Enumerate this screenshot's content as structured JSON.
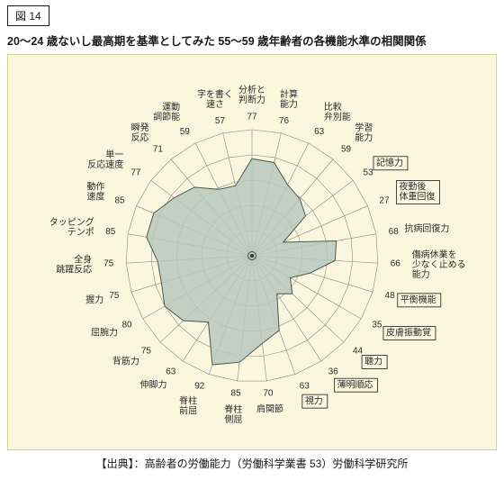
{
  "figure_tag": "図  14",
  "title": "20～24 歳ないし最高期を基準としてみた 55～59 歳年齢者の各機能水準の相関関係",
  "credit": "【出典】：高齢者の労働能力（労働科学業書 53）労働科学研究所",
  "chart": {
    "type": "radar",
    "background_color": "#fbf7de",
    "border_color": "#aab241",
    "border_width": 1,
    "grid_stroke": "#888888",
    "grid_stroke_width": 0.6,
    "axis_stroke": "#888888",
    "axis_stroke_width": 0.6,
    "data_fill": "#b9c8bd",
    "data_fill_opacity": 0.85,
    "data_stroke": "#4a5a4f",
    "data_stroke_width": 1,
    "label_color": "#2c2c2c",
    "value_color": "#2c2c2c",
    "highlight_stroke": "#1a1a1a",
    "rings": [
      20,
      40,
      60,
      80,
      100
    ],
    "max_value": 100,
    "center_marker": true,
    "axes": [
      {
        "label": "分析と\n判断力",
        "value": 77,
        "highlight": false
      },
      {
        "label": "計算\n能力",
        "value": 76,
        "highlight": false
      },
      {
        "label": "比較\n弁別能",
        "value": 63,
        "highlight": false
      },
      {
        "label": "学習\n能力",
        "value": 59,
        "highlight": false
      },
      {
        "label": "記憶力",
        "value": 53,
        "highlight": true
      },
      {
        "label": "夜勤後\n体重回復",
        "value": 27,
        "highlight": true
      },
      {
        "label": "抗病回復力",
        "value": 68,
        "highlight": false
      },
      {
        "label": "傷病休業を\n少なく止める\n能力",
        "value": 66,
        "highlight": false
      },
      {
        "label": "平衡機能",
        "value": 48,
        "highlight": true
      },
      {
        "label": "皮膚振動覚",
        "value": 35,
        "highlight": true
      },
      {
        "label": "聴力",
        "value": 44,
        "highlight": true
      },
      {
        "label": "薄明順応",
        "value": 36,
        "highlight": true
      },
      {
        "label": "視力",
        "value": 63,
        "highlight": true
      },
      {
        "label": "肩関節",
        "value": 70,
        "highlight": false
      },
      {
        "label": "脊柱\n側屈",
        "value": 85,
        "highlight": false
      },
      {
        "label": "脊柱\n前屈",
        "value": 92,
        "highlight": false
      },
      {
        "label": "伸脚力",
        "value": 63,
        "highlight": false
      },
      {
        "label": "背筋力",
        "value": 75,
        "highlight": false
      },
      {
        "label": "屈腕力",
        "value": 80,
        "highlight": false
      },
      {
        "label": "握力",
        "value": 75,
        "highlight": false
      },
      {
        "label": "全身\n跳躍反応",
        "value": 75,
        "highlight": false
      },
      {
        "label": "タッピング\nテンポ",
        "value": 85,
        "highlight": false
      },
      {
        "label": "動作\n速度",
        "value": 85,
        "highlight": false
      },
      {
        "label": "単一\n反応速度",
        "value": 77,
        "highlight": false
      },
      {
        "label": "瞬発\n反応",
        "value": 71,
        "highlight": false
      },
      {
        "label": "運動\n調節能",
        "value": 59,
        "highlight": false
      },
      {
        "label": "字を書く\n速さ",
        "value": 57,
        "highlight": false
      }
    ]
  }
}
